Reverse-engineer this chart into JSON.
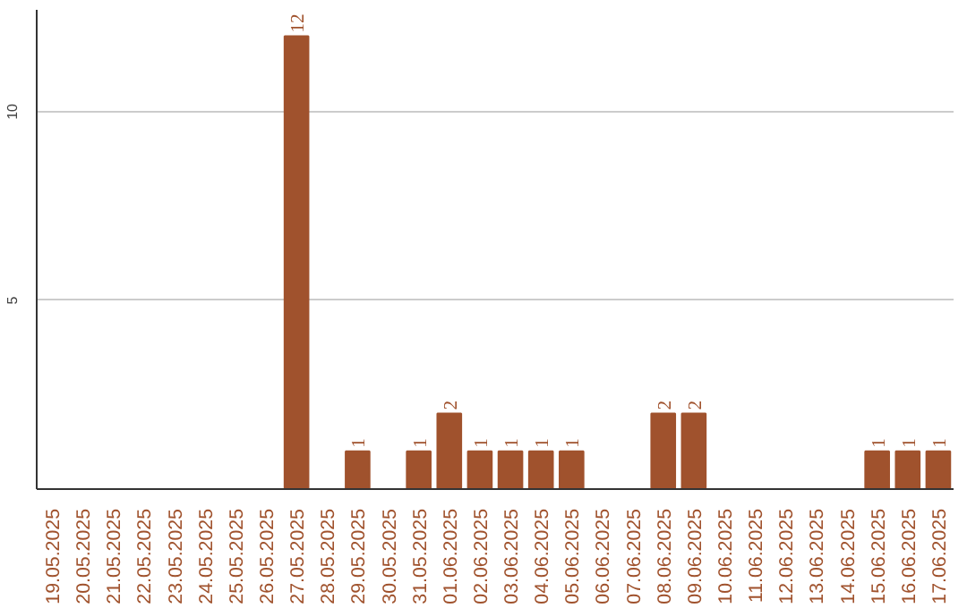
{
  "chart_data": {
    "type": "bar",
    "categories": [
      "19.05.2025",
      "20.05.2025",
      "21.05.2025",
      "22.05.2025",
      "23.05.2025",
      "24.05.2025",
      "25.05.2025",
      "26.05.2025",
      "27.05.2025",
      "28.05.2025",
      "29.05.2025",
      "30.05.2025",
      "31.05.2025",
      "01.06.2025",
      "02.06.2025",
      "03.06.2025",
      "04.06.2025",
      "05.06.2025",
      "06.06.2025",
      "07.06.2025",
      "08.06.2025",
      "09.06.2025",
      "10.06.2025",
      "11.06.2025",
      "12.06.2025",
      "13.06.2025",
      "14.06.2025",
      "15.06.2025",
      "16.06.2025",
      "17.06.2025"
    ],
    "values": [
      0,
      0,
      0,
      0,
      0,
      0,
      0,
      0,
      12,
      0,
      1,
      0,
      1,
      2,
      1,
      1,
      1,
      1,
      0,
      0,
      2,
      2,
      0,
      0,
      0,
      0,
      0,
      1,
      1,
      1
    ],
    "value_labels": [
      null,
      null,
      null,
      null,
      null,
      null,
      null,
      null,
      "12",
      null,
      "1",
      null,
      "1",
      "2",
      "1",
      "1",
      "1",
      "1",
      null,
      null,
      "2",
      "2",
      null,
      null,
      null,
      null,
      null,
      "1",
      "1",
      "1"
    ],
    "color": "#a0522d",
    "ylim": [
      0,
      12.7
    ],
    "yticks": [
      5,
      10
    ],
    "grid": "y"
  }
}
